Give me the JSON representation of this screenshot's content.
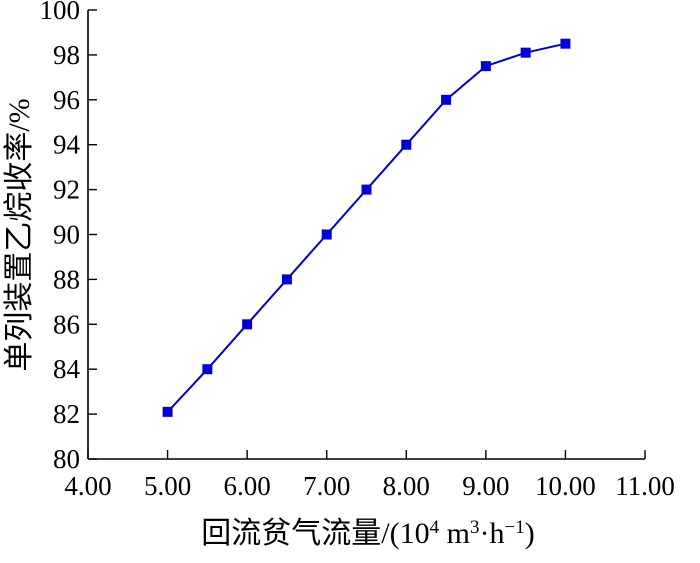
{
  "chart_data": {
    "type": "line",
    "title": "",
    "xlabel": "回流贫气流量/(10⁴ m³·h⁻¹)",
    "ylabel": "单列装置乙烷收率/%",
    "xlim": [
      4.0,
      11.0
    ],
    "ylim": [
      80,
      100
    ],
    "x_ticks": [
      "4.00",
      "5.00",
      "6.00",
      "7.00",
      "8.00",
      "9.00",
      "10.00",
      "11.00"
    ],
    "y_ticks": [
      "80",
      "82",
      "84",
      "86",
      "88",
      "90",
      "92",
      "94",
      "96",
      "98",
      "100"
    ],
    "grid": false,
    "legend": "none",
    "series": [
      {
        "color": "#0000dd",
        "marker": "square",
        "x": [
          5.0,
          5.5,
          6.0,
          6.5,
          7.0,
          7.5,
          8.0,
          8.5,
          9.0,
          9.5,
          10.0
        ],
        "y": [
          82.1,
          84.0,
          86.0,
          88.0,
          90.0,
          92.0,
          94.0,
          96.0,
          97.5,
          98.1,
          98.5
        ]
      }
    ]
  }
}
